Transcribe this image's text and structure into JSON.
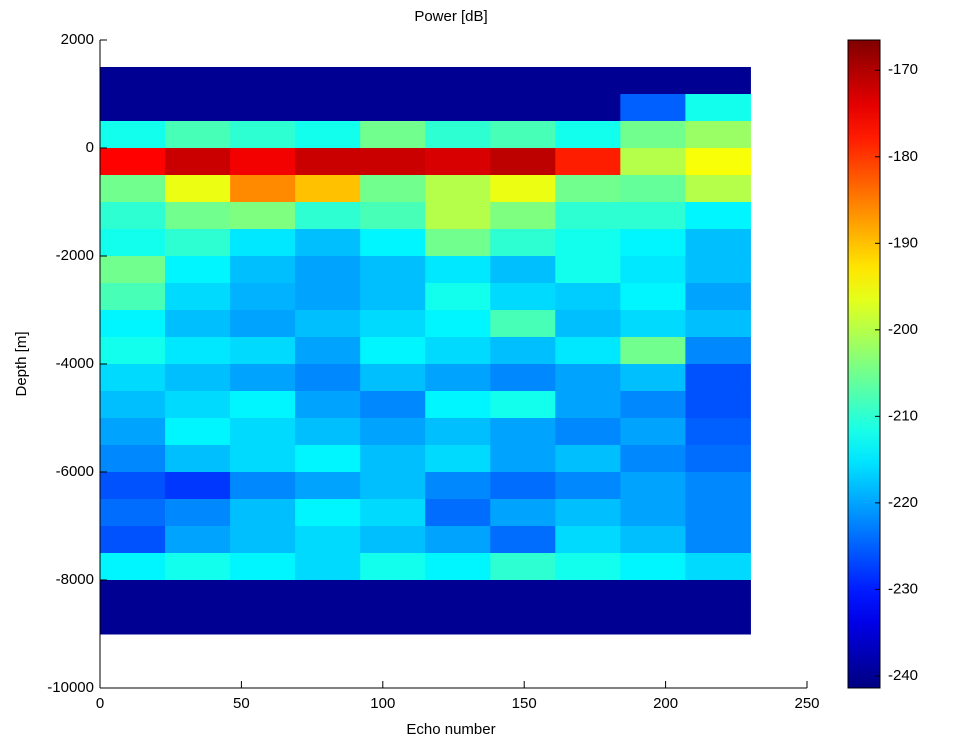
{
  "chart_data": {
    "type": "heatmap",
    "title": "Power [dB]",
    "xlabel": "Echo number",
    "ylabel": "Depth [m]",
    "xlim": [
      0,
      250
    ],
    "xticks": [
      0,
      50,
      100,
      150,
      200,
      250
    ],
    "ylim": [
      -10000,
      2000
    ],
    "yticks": [
      -10000,
      -8000,
      -6000,
      -4000,
      -2000,
      0,
      2000
    ],
    "x_edges": [
      0,
      23,
      46,
      69,
      92,
      115,
      138,
      161,
      184,
      207,
      230
    ],
    "y_edges": [
      1500,
      1000,
      500,
      0,
      -500,
      -1000,
      -1500,
      -2000,
      -2500,
      -3000,
      -3500,
      -4000,
      -4500,
      -5000,
      -5500,
      -6000,
      -6500,
      -7000,
      -7500,
      -8000,
      -8500,
      -9000
    ],
    "z": [
      [
        -240,
        -240,
        -240,
        -240,
        -240,
        -240,
        -240,
        -240,
        -240,
        -240
      ],
      [
        -240,
        -240,
        -240,
        -240,
        -240,
        -240,
        -240,
        -240,
        -225,
        -212
      ],
      [
        -212,
        -208,
        -210,
        -212,
        -205,
        -210,
        -208,
        -212,
        -205,
        -202
      ],
      [
        -176,
        -172,
        -175,
        -172,
        -172,
        -173,
        -171,
        -178,
        -200,
        -195
      ],
      [
        -205,
        -196,
        -186,
        -190,
        -205,
        -200,
        -196,
        -205,
        -206,
        -200
      ],
      [
        -210,
        -205,
        -204,
        -210,
        -208,
        -200,
        -204,
        -210,
        -210,
        -214
      ],
      [
        -212,
        -210,
        -215,
        -218,
        -214,
        -205,
        -210,
        -212,
        -214,
        -218
      ],
      [
        -205,
        -214,
        -218,
        -220,
        -218,
        -215,
        -218,
        -212,
        -215,
        -218
      ],
      [
        -208,
        -216,
        -219,
        -220,
        -218,
        -212,
        -216,
        -217,
        -214,
        -220
      ],
      [
        -214,
        -218,
        -220,
        -218,
        -216,
        -214,
        -208,
        -218,
        -216,
        -218
      ],
      [
        -212,
        -215,
        -216,
        -220,
        -214,
        -216,
        -218,
        -215,
        -205,
        -222
      ],
      [
        -216,
        -218,
        -220,
        -222,
        -218,
        -220,
        -222,
        -220,
        -218,
        -226
      ],
      [
        -218,
        -216,
        -214,
        -220,
        -222,
        -214,
        -212,
        -220,
        -222,
        -226
      ],
      [
        -220,
        -214,
        -216,
        -218,
        -220,
        -218,
        -220,
        -222,
        -220,
        -225
      ],
      [
        -222,
        -218,
        -216,
        -214,
        -218,
        -216,
        -220,
        -218,
        -222,
        -224
      ],
      [
        -226,
        -228,
        -222,
        -220,
        -218,
        -222,
        -224,
        -222,
        -220,
        -222
      ],
      [
        -224,
        -222,
        -218,
        -214,
        -216,
        -224,
        -220,
        -218,
        -220,
        -222
      ],
      [
        -226,
        -220,
        -218,
        -216,
        -218,
        -220,
        -224,
        -216,
        -218,
        -222
      ],
      [
        -214,
        -212,
        -214,
        -216,
        -212,
        -214,
        -210,
        -212,
        -214,
        -216
      ],
      [
        -240,
        -240,
        -240,
        -240,
        -240,
        -240,
        -240,
        -240,
        -240,
        -240
      ],
      [
        -240,
        -240,
        -240,
        -240,
        -240,
        -240,
        -240,
        -240,
        -240,
        -240
      ]
    ],
    "colormap": "jet",
    "clim": [
      -241.4,
      -166.5
    ],
    "cticks": [
      -240,
      -230,
      -220,
      -210,
      -200,
      -190,
      -180,
      -170
    ]
  }
}
